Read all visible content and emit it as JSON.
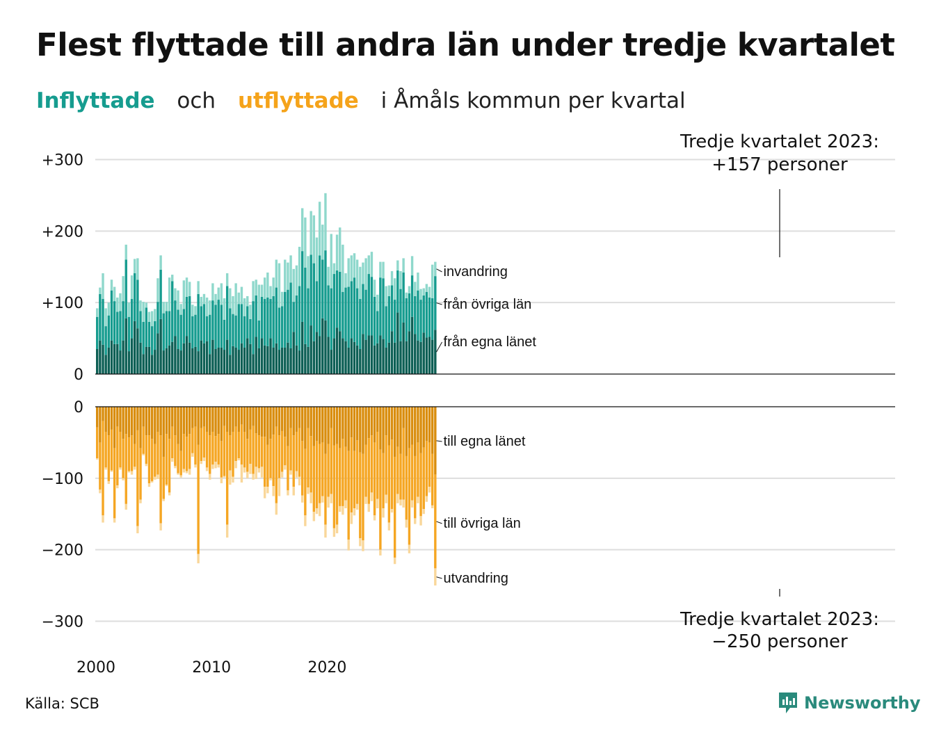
{
  "title": "Flest flyttade till andra län under tredje kvartalet",
  "subtitle": {
    "part1": "Inflyttade",
    "part2": "och",
    "part3": "utflyttade",
    "part4": "i Åmåls kommun per kvartal"
  },
  "annotations": {
    "top_line1": "Tredje kvartalet 2023:",
    "top_line2": "+157 personer",
    "bottom_line1": "Tredje kvartalet 2023:",
    "bottom_line2": "−250 personer"
  },
  "source": "Källa: SCB",
  "brand": "Newsworthy",
  "colors": {
    "in_own": "#0d5f55",
    "in_other": "#169c8f",
    "in_immigration": "#8fd8cc",
    "out_own": "#d98d0e",
    "out_other": "#f5a623",
    "out_emigration": "#f9d79a",
    "grid": "#dddddd",
    "brand": "#2a8a7c"
  },
  "chart_data": [
    {
      "type": "bar",
      "stacked": true,
      "title": "Inflyttade",
      "x_start": "2000 Q1",
      "x_end": "2023 Q3",
      "x_tick_labels": [
        "2000",
        "2010",
        "2020"
      ],
      "y_tick_labels": [
        "+300",
        "+200",
        "+100",
        "0"
      ],
      "ylim": [
        0,
        300
      ],
      "grid": true,
      "series": [
        {
          "name": "från egna länet",
          "values": [
            35,
            47,
            41,
            27,
            37,
            47,
            42,
            42,
            33,
            47,
            78,
            32,
            50,
            74,
            64,
            44,
            28,
            38,
            38,
            27,
            34,
            57,
            77,
            33,
            36,
            40,
            45,
            53,
            35,
            33,
            43,
            53,
            44,
            36,
            38,
            32,
            47,
            43,
            46,
            28,
            48,
            35,
            37,
            37,
            34,
            48,
            27,
            39,
            37,
            34,
            43,
            37,
            50,
            42,
            28,
            52,
            36,
            50,
            40,
            39,
            50,
            37,
            43,
            34,
            37,
            37,
            44,
            36,
            59,
            40,
            33,
            73,
            42,
            38,
            68,
            46,
            59,
            53,
            78,
            75,
            52,
            34,
            50,
            65,
            60,
            50,
            46,
            37,
            50,
            45,
            40,
            35,
            56,
            48,
            54,
            54,
            40,
            43,
            54,
            49,
            37,
            44,
            60,
            44,
            86,
            46,
            72,
            46,
            60,
            80,
            56,
            47,
            45,
            58,
            51,
            52,
            48,
            62
          ]
        },
        {
          "name": "från övriga län",
          "values": [
            45,
            65,
            64,
            40,
            45,
            70,
            60,
            45,
            55,
            55,
            82,
            48,
            55,
            67,
            68,
            44,
            45,
            55,
            35,
            40,
            40,
            44,
            69,
            52,
            52,
            48,
            85,
            50,
            55,
            50,
            48,
            55,
            65,
            45,
            45,
            80,
            48,
            55,
            35,
            55,
            55,
            62,
            67,
            60,
            42,
            75,
            65,
            45,
            45,
            64,
            55,
            44,
            45,
            35,
            74,
            58,
            39,
            58,
            65,
            68,
            55,
            72,
            78,
            59,
            58,
            78,
            74,
            92,
            42,
            70,
            90,
            99,
            107,
            82,
            99,
            109,
            71,
            113,
            82,
            98,
            72,
            86,
            90,
            80,
            83,
            65,
            75,
            85,
            80,
            90,
            80,
            70,
            70,
            70,
            86,
            82,
            68,
            45,
            81,
            85,
            58,
            65,
            64,
            60,
            59,
            73,
            70,
            60,
            53,
            58,
            53,
            70,
            59,
            52,
            64,
            55,
            58,
            75
          ]
        },
        {
          "name": "invandring",
          "values": [
            12,
            9,
            36,
            25,
            18,
            15,
            20,
            20,
            25,
            35,
            21,
            20,
            33,
            20,
            30,
            15,
            28,
            7,
            14,
            21,
            17,
            33,
            20,
            16,
            13,
            47,
            9,
            17,
            27,
            15,
            40,
            27,
            20,
            16,
            12,
            18,
            13,
            14,
            26,
            20,
            24,
            15,
            17,
            30,
            30,
            18,
            28,
            25,
            45,
            16,
            24,
            25,
            14,
            20,
            28,
            22,
            50,
            17,
            30,
            35,
            18,
            26,
            39,
            62,
            20,
            45,
            38,
            38,
            46,
            42,
            55,
            60,
            70,
            45,
            61,
            67,
            61,
            75,
            49,
            80,
            26,
            76,
            15,
            50,
            62,
            66,
            20,
            40,
            36,
            34,
            40,
            45,
            30,
            44,
            26,
            35,
            24,
            23,
            22,
            23,
            28,
            15,
            20,
            30,
            14,
            25,
            20,
            8,
            10,
            27,
            20,
            25,
            15,
            10,
            11,
            15,
            47,
            20
          ]
        }
      ]
    },
    {
      "type": "bar",
      "stacked": true,
      "title": "Utflyttade",
      "x_start": "2000 Q1",
      "x_end": "2023 Q3",
      "x_tick_labels": [
        "2000",
        "2010",
        "2020"
      ],
      "y_tick_labels": [
        "0",
        "−100",
        "−200",
        "−300"
      ],
      "ylim": [
        -300,
        0
      ],
      "grid": true,
      "series": [
        {
          "name": "till egna länet",
          "values": [
            -29,
            -50,
            -20,
            -35,
            -40,
            -32,
            -58,
            -28,
            -35,
            -45,
            -38,
            -43,
            -40,
            -52,
            -33,
            -58,
            -28,
            -40,
            -40,
            -45,
            -52,
            -35,
            -40,
            -70,
            -38,
            -45,
            -28,
            -40,
            -52,
            -62,
            -38,
            -42,
            -38,
            -30,
            -28,
            -53,
            -30,
            -28,
            -35,
            -40,
            -35,
            -41,
            -38,
            -48,
            -27,
            -35,
            -40,
            -35,
            -28,
            -35,
            -25,
            -35,
            -45,
            -32,
            -27,
            -37,
            -40,
            -42,
            -42,
            -53,
            -45,
            -39,
            -28,
            -40,
            -34,
            -42,
            -55,
            -30,
            -40,
            -35,
            -30,
            -48,
            -59,
            -30,
            -41,
            -55,
            -48,
            -52,
            -50,
            -66,
            -52,
            -30,
            -54,
            -52,
            -58,
            -45,
            -56,
            -62,
            -43,
            -62,
            -47,
            -64,
            -66,
            -53,
            -44,
            -40,
            -50,
            -35,
            -60,
            -65,
            -40,
            -54,
            -46,
            -70,
            -56,
            -66,
            -30,
            -69,
            -58,
            -53,
            -69,
            -50,
            -65,
            -57,
            -48,
            -50,
            -66,
            -95
          ]
        },
        {
          "name": "till övriga län",
          "values": [
            -43,
            -66,
            -132,
            -50,
            -64,
            -57,
            -98,
            -82,
            -50,
            -55,
            -98,
            -47,
            -50,
            -32,
            -134,
            -72,
            -38,
            -40,
            -67,
            -59,
            -46,
            -60,
            -123,
            -59,
            -71,
            -75,
            -44,
            -43,
            -41,
            -34,
            -49,
            -48,
            -49,
            -35,
            -53,
            -153,
            -46,
            -43,
            -50,
            -54,
            -46,
            -36,
            -43,
            -51,
            -70,
            -130,
            -49,
            -63,
            -48,
            -37,
            -56,
            -50,
            -46,
            -48,
            -67,
            -47,
            -46,
            -42,
            -70,
            -59,
            -55,
            -72,
            -107,
            -60,
            -57,
            -40,
            -62,
            -59,
            -72,
            -55,
            -68,
            -76,
            -93,
            -83,
            -79,
            -92,
            -94,
            -83,
            -75,
            -99,
            -74,
            -92,
            -116,
            -113,
            -81,
            -94,
            -75,
            -124,
            -105,
            -80,
            -89,
            -120,
            -121,
            -73,
            -92,
            -80,
            -102,
            -94,
            -140,
            -77,
            -83,
            -108,
            -97,
            -141,
            -66,
            -64,
            -100,
            -89,
            -135,
            -78,
            -87,
            -76,
            -88,
            -86,
            -77,
            -62,
            -72,
            -131
          ]
        },
        {
          "name": "utvandring",
          "values": [
            -2,
            -5,
            -10,
            -3,
            -4,
            -2,
            -6,
            -4,
            -3,
            -3,
            -8,
            -2,
            -5,
            -4,
            -10,
            -5,
            -2,
            -3,
            -5,
            -2,
            -4,
            -6,
            -10,
            -3,
            -2,
            -4,
            -5,
            -3,
            -2,
            -3,
            -5,
            -3,
            -8,
            -5,
            -4,
            -13,
            -4,
            -5,
            -5,
            -8,
            -6,
            -9,
            -4,
            -8,
            -2,
            -18,
            -20,
            -8,
            -10,
            -3,
            -25,
            -7,
            -9,
            -14,
            -8,
            -17,
            -6,
            -15,
            -16,
            -9,
            -3,
            -14,
            -16,
            -25,
            -8,
            -6,
            -7,
            -6,
            -12,
            -9,
            -12,
            -10,
            -15,
            -9,
            -15,
            -13,
            -8,
            -18,
            -9,
            -18,
            -15,
            -13,
            -12,
            -12,
            -8,
            -12,
            -11,
            -15,
            -16,
            -10,
            -8,
            -11,
            -15,
            -10,
            -11,
            -12,
            -7,
            -13,
            -8,
            -13,
            -12,
            -11,
            -5,
            -9,
            -13,
            -8,
            -11,
            -11,
            -12,
            -10,
            -8,
            -9,
            -13,
            -7,
            -8,
            -8,
            -4,
            -24
          ]
        }
      ]
    }
  ]
}
